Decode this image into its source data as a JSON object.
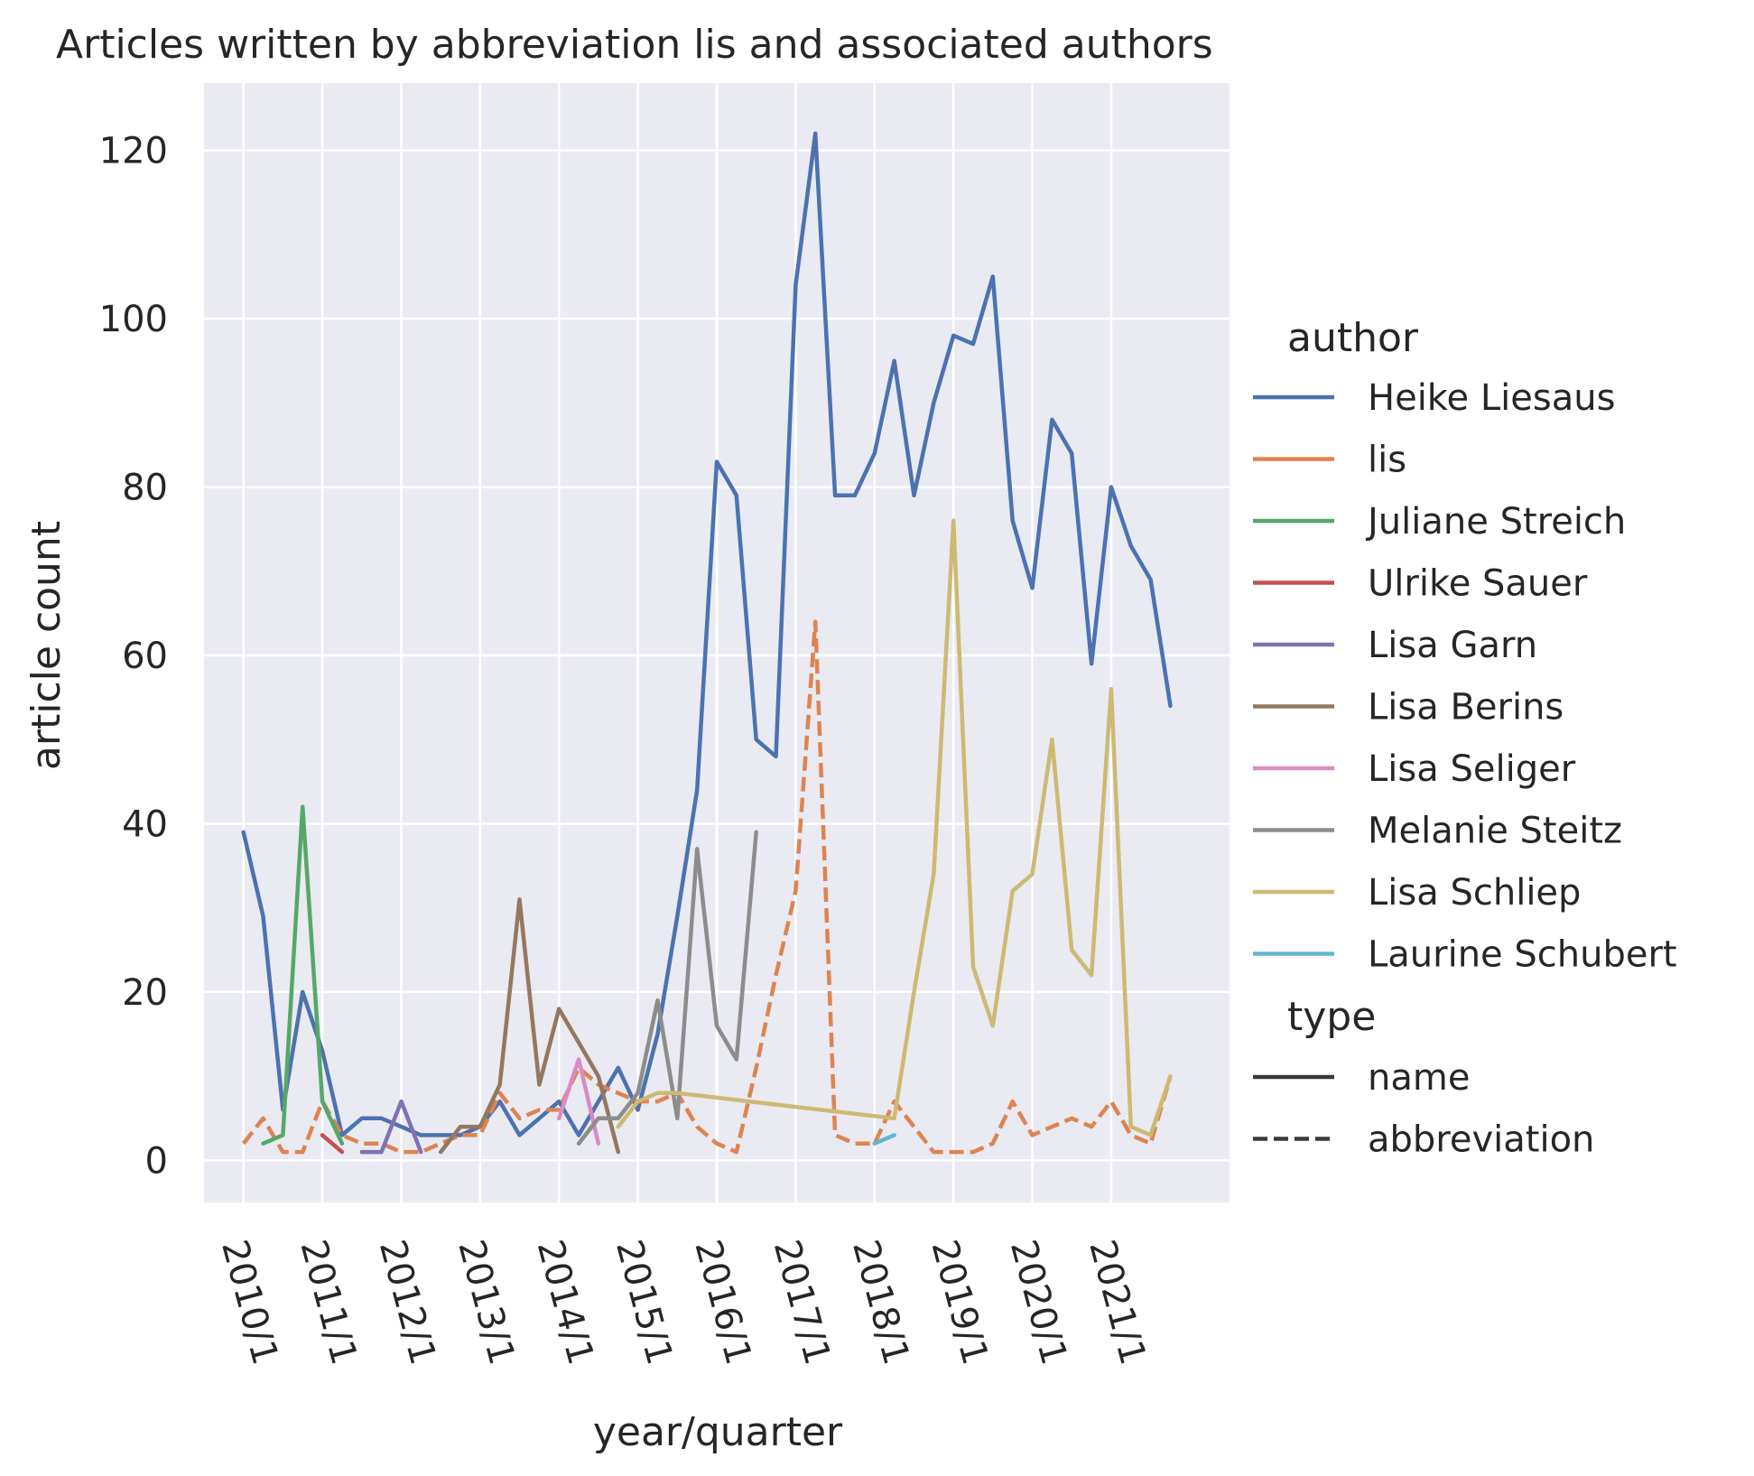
{
  "chart_data": {
    "type": "line",
    "title": "Articles written by abbreviation lis and associated authors",
    "xlabel": "year/quarter",
    "ylabel": "article count",
    "x_ticks": [
      "2010/1",
      "2011/1",
      "2012/1",
      "2013/1",
      "2014/1",
      "2015/1",
      "2016/1",
      "2017/1",
      "2018/1",
      "2019/1",
      "2020/1",
      "2021/1"
    ],
    "y_ticks": [
      0,
      20,
      40,
      60,
      80,
      100,
      120
    ],
    "ylim": [
      -5,
      128
    ],
    "xlim": [
      "2009/3",
      "2022/3"
    ],
    "grid": true,
    "legend_placement": "right",
    "legend": {
      "author_title": "author",
      "type_title": "type",
      "type_entries": [
        {
          "label": "name",
          "dash": "solid"
        },
        {
          "label": "abbreviation",
          "dash": "dashed"
        }
      ]
    },
    "series": [
      {
        "name": "Heike Liesaus",
        "type": "name",
        "color": "#4c72b0",
        "points": [
          [
            "2010/1",
            39
          ],
          [
            "2010/2",
            29
          ],
          [
            "2010/3",
            6
          ],
          [
            "2010/4",
            20
          ],
          [
            "2011/1",
            13
          ],
          [
            "2011/2",
            3
          ],
          [
            "2011/3",
            5
          ],
          [
            "2011/4",
            5
          ],
          [
            "2012/1",
            4
          ],
          [
            "2012/2",
            3
          ],
          [
            "2012/3",
            3
          ],
          [
            "2012/4",
            3
          ],
          [
            "2013/1",
            4
          ],
          [
            "2013/2",
            7
          ],
          [
            "2013/3",
            3
          ],
          [
            "2013/4",
            5
          ],
          [
            "2014/1",
            7
          ],
          [
            "2014/2",
            3
          ],
          [
            "2014/3",
            7
          ],
          [
            "2014/4",
            11
          ],
          [
            "2015/1",
            6
          ],
          [
            "2015/2",
            15
          ],
          [
            "2015/3",
            29
          ],
          [
            "2015/4",
            44
          ],
          [
            "2016/1",
            83
          ],
          [
            "2016/2",
            79
          ],
          [
            "2016/3",
            50
          ],
          [
            "2016/4",
            48
          ],
          [
            "2017/1",
            104
          ],
          [
            "2017/2",
            122
          ],
          [
            "2017/3",
            79
          ],
          [
            "2017/4",
            79
          ],
          [
            "2018/1",
            84
          ],
          [
            "2018/2",
            95
          ],
          [
            "2018/3",
            79
          ],
          [
            "2018/4",
            90
          ],
          [
            "2019/1",
            98
          ],
          [
            "2019/2",
            97
          ],
          [
            "2019/3",
            105
          ],
          [
            "2019/4",
            76
          ],
          [
            "2020/1",
            68
          ],
          [
            "2020/2",
            88
          ],
          [
            "2020/3",
            84
          ],
          [
            "2020/4",
            59
          ],
          [
            "2021/1",
            80
          ],
          [
            "2021/2",
            73
          ],
          [
            "2021/3",
            69
          ],
          [
            "2021/4",
            54
          ]
        ]
      },
      {
        "name": "lis",
        "type": "abbreviation",
        "color": "#dd8452",
        "points": [
          [
            "2010/1",
            2
          ],
          [
            "2010/2",
            5
          ],
          [
            "2010/3",
            1
          ],
          [
            "2010/4",
            1
          ],
          [
            "2011/1",
            7
          ],
          [
            "2011/2",
            3
          ],
          [
            "2011/3",
            2
          ],
          [
            "2011/4",
            2
          ],
          [
            "2012/1",
            1
          ],
          [
            "2012/2",
            1
          ],
          [
            "2012/4",
            3
          ],
          [
            "2013/1",
            3
          ],
          [
            "2013/2",
            8
          ],
          [
            "2013/3",
            5
          ],
          [
            "2013/4",
            6
          ],
          [
            "2014/1",
            6
          ],
          [
            "2014/2",
            11
          ],
          [
            "2014/3",
            9
          ],
          [
            "2014/4",
            8
          ],
          [
            "2015/1",
            7
          ],
          [
            "2015/2",
            7
          ],
          [
            "2015/3",
            8
          ],
          [
            "2015/4",
            4
          ],
          [
            "2016/1",
            2
          ],
          [
            "2016/2",
            1
          ],
          [
            "2016/3",
            11
          ],
          [
            "2016/4",
            22
          ],
          [
            "2017/1",
            32
          ],
          [
            "2017/2",
            64
          ],
          [
            "2017/3",
            3
          ],
          [
            "2017/4",
            2
          ],
          [
            "2018/1",
            2
          ],
          [
            "2018/2",
            7
          ],
          [
            "2018/3",
            4
          ],
          [
            "2018/4",
            1
          ],
          [
            "2019/1",
            1
          ],
          [
            "2019/2",
            1
          ],
          [
            "2019/3",
            2
          ],
          [
            "2019/4",
            7
          ],
          [
            "2020/1",
            3
          ],
          [
            "2020/2",
            4
          ],
          [
            "2020/3",
            5
          ],
          [
            "2020/4",
            4
          ],
          [
            "2021/1",
            7
          ],
          [
            "2021/2",
            3
          ],
          [
            "2021/3",
            2
          ],
          [
            "2021/4",
            10
          ]
        ]
      },
      {
        "name": "Juliane Streich",
        "type": "name",
        "color": "#55a868",
        "points": [
          [
            "2010/2",
            2
          ],
          [
            "2010/3",
            3
          ],
          [
            "2010/4",
            42
          ],
          [
            "2011/1",
            7
          ],
          [
            "2011/2",
            2
          ]
        ]
      },
      {
        "name": "Ulrike Sauer",
        "type": "name",
        "color": "#c44e52",
        "points": [
          [
            "2011/1",
            3
          ],
          [
            "2011/2",
            1
          ]
        ]
      },
      {
        "name": "Lisa Garn",
        "type": "name",
        "color": "#8172b3",
        "points": [
          [
            "2011/3",
            1
          ],
          [
            "2011/4",
            1
          ],
          [
            "2012/1",
            7
          ],
          [
            "2012/2",
            1
          ]
        ]
      },
      {
        "name": "Lisa Berins",
        "type": "name",
        "color": "#937860",
        "points": [
          [
            "2012/3",
            1
          ],
          [
            "2012/4",
            4
          ],
          [
            "2013/1",
            4
          ],
          [
            "2013/2",
            9
          ],
          [
            "2013/3",
            31
          ],
          [
            "2013/4",
            9
          ],
          [
            "2014/1",
            18
          ],
          [
            "2014/2",
            14
          ],
          [
            "2014/3",
            10
          ],
          [
            "2014/4",
            1
          ]
        ]
      },
      {
        "name": "Lisa Seliger",
        "type": "name",
        "color": "#da8bc3",
        "points": [
          [
            "2014/1",
            5
          ],
          [
            "2014/2",
            12
          ],
          [
            "2014/3",
            2
          ]
        ]
      },
      {
        "name": "Melanie Steitz",
        "type": "name",
        "color": "#8c8c8c",
        "points": [
          [
            "2014/2",
            2
          ],
          [
            "2014/3",
            5
          ],
          [
            "2014/4",
            5
          ],
          [
            "2015/1",
            8
          ],
          [
            "2015/2",
            19
          ],
          [
            "2015/3",
            5
          ],
          [
            "2015/4",
            37
          ],
          [
            "2016/1",
            16
          ],
          [
            "2016/2",
            12
          ],
          [
            "2016/3",
            39
          ]
        ]
      },
      {
        "name": "Lisa Schliep",
        "type": "name",
        "color": "#ccb974",
        "points": [
          [
            "2014/4",
            4
          ],
          [
            "2015/1",
            7
          ],
          [
            "2015/2",
            8
          ],
          [
            "2015/3",
            8
          ],
          [
            "2018/2",
            5
          ],
          [
            "2018/3",
            20
          ],
          [
            "2018/4",
            34
          ],
          [
            "2019/1",
            76
          ],
          [
            "2019/2",
            23
          ],
          [
            "2019/3",
            16
          ],
          [
            "2019/4",
            32
          ],
          [
            "2020/1",
            34
          ],
          [
            "2020/2",
            50
          ],
          [
            "2020/3",
            25
          ],
          [
            "2020/4",
            22
          ],
          [
            "2021/1",
            56
          ],
          [
            "2021/2",
            4
          ],
          [
            "2021/3",
            3
          ],
          [
            "2021/4",
            10
          ]
        ]
      },
      {
        "name": "Laurine Schubert",
        "type": "name",
        "color": "#64b5cd",
        "points": [
          [
            "2018/1",
            2
          ],
          [
            "2018/2",
            3
          ]
        ]
      }
    ]
  }
}
